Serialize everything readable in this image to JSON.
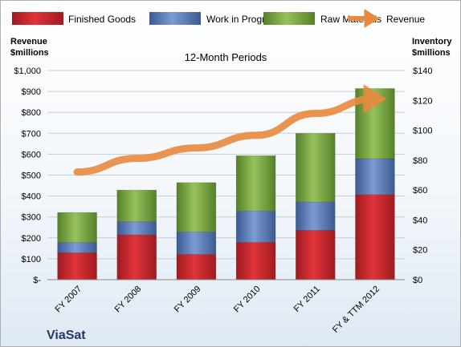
{
  "chart_data": {
    "type": "bar",
    "stacked": true,
    "subtitle": "12-Month Periods",
    "company": "ViaSat",
    "categories": [
      "FY 2007",
      "FY 2008",
      "FY 2009",
      "FY 2010",
      "FY 2011",
      "FY & TTM 2012"
    ],
    "left_axis": {
      "title_line1": "Revenue",
      "title_line2": "$millions",
      "ylim": [
        0,
        1000
      ],
      "ticks": [
        "$-",
        "$100",
        "$200",
        "$300",
        "$400",
        "$500",
        "$600",
        "$700",
        "$800",
        "$900",
        "$1,000"
      ]
    },
    "right_axis": {
      "title_line1": "Inventory",
      "title_line2": "$millions",
      "ylim": [
        0,
        140
      ],
      "ticks": [
        "$0",
        "$20",
        "$40",
        "$60",
        "$80",
        "$100",
        "$120",
        "$140"
      ]
    },
    "series": [
      {
        "name": "Finished Goods",
        "axis": "right",
        "color": "#c0272d",
        "values": [
          18,
          30,
          17,
          25,
          33,
          57
        ]
      },
      {
        "name": "Work in Progress",
        "axis": "right",
        "color": "#4f72b4",
        "values": [
          7,
          9,
          15,
          21,
          19,
          24
        ]
      },
      {
        "name": "Raw Materials",
        "axis": "right",
        "color": "#71a23a",
        "values": [
          20,
          21,
          33,
          37,
          46,
          47
        ]
      }
    ],
    "line_series": {
      "name": "Revenue",
      "axis": "left",
      "color": "#e88a3d",
      "values": [
        515,
        580,
        630,
        690,
        795,
        865
      ]
    },
    "grid": true,
    "legend_position": "top"
  }
}
